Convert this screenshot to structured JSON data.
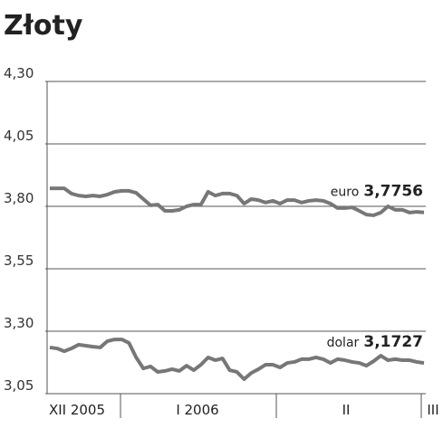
{
  "chart_data": {
    "type": "line",
    "title": "Złoty",
    "ylim": [
      3.05,
      4.3
    ],
    "yticks": [
      {
        "value": 4.3,
        "label": "4,30"
      },
      {
        "value": 4.05,
        "label": "4,05"
      },
      {
        "value": 3.8,
        "label": "3,80"
      },
      {
        "value": 3.55,
        "label": "3,55"
      },
      {
        "value": 3.3,
        "label": "3,30"
      },
      {
        "value": 3.05,
        "label": "3,05"
      }
    ],
    "grid": true,
    "periods": [
      "XII 2005",
      "I 2006",
      "II",
      "III"
    ],
    "series": [
      {
        "name": "euro",
        "color": "#777777",
        "last_value_label": "3,7756",
        "values": [
          3.872,
          3.872,
          3.872,
          3.851,
          3.843,
          3.84,
          3.843,
          3.84,
          3.847,
          3.858,
          3.862,
          3.862,
          3.854,
          3.829,
          3.804,
          3.807,
          3.782,
          3.782,
          3.786,
          3.8,
          3.807,
          3.807,
          3.858,
          3.843,
          3.851,
          3.851,
          3.843,
          3.811,
          3.829,
          3.825,
          3.815,
          3.822,
          3.811,
          3.825,
          3.825,
          3.815,
          3.822,
          3.825,
          3.822,
          3.811,
          3.793,
          3.793,
          3.796,
          3.782,
          3.767,
          3.764,
          3.775,
          3.8,
          3.786,
          3.786,
          3.775,
          3.778,
          3.7756
        ]
      },
      {
        "name": "dolar",
        "color": "#777777",
        "last_value_label": "3,1727",
        "values": [
          3.235,
          3.231,
          3.22,
          3.231,
          3.246,
          3.242,
          3.238,
          3.235,
          3.26,
          3.267,
          3.267,
          3.253,
          3.195,
          3.151,
          3.159,
          3.137,
          3.141,
          3.148,
          3.141,
          3.162,
          3.144,
          3.166,
          3.195,
          3.184,
          3.191,
          3.144,
          3.137,
          3.108,
          3.133,
          3.148,
          3.166,
          3.166,
          3.155,
          3.173,
          3.177,
          3.188,
          3.188,
          3.195,
          3.188,
          3.173,
          3.188,
          3.184,
          3.177,
          3.173,
          3.162,
          3.18,
          3.202,
          3.184,
          3.188,
          3.184,
          3.184,
          3.177,
          3.1727
        ]
      }
    ]
  }
}
